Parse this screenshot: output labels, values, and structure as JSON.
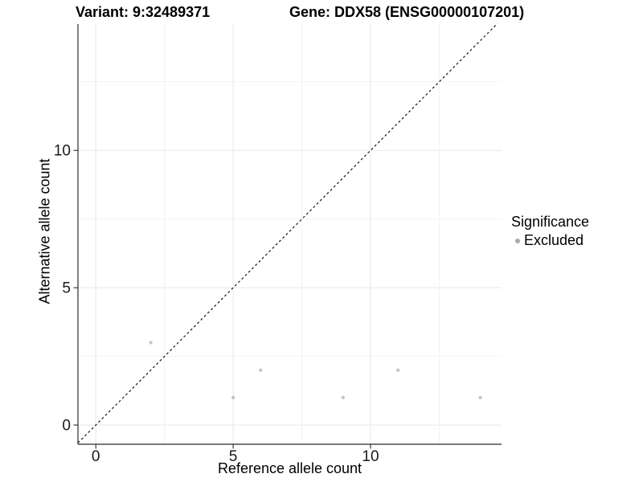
{
  "chart_data": {
    "type": "scatter",
    "titles": {
      "variant": "Variant: 9:32489371",
      "gene": "Gene: DDX58 (ENSG00000107201)"
    },
    "xlabel": "Reference allele count",
    "ylabel": "Alternative allele count",
    "xlim": [
      -0.65,
      14.77
    ],
    "ylim": [
      -0.7,
      14.6
    ],
    "xticks": [
      0,
      5,
      10
    ],
    "yticks": [
      0,
      5,
      10
    ],
    "xminor": [
      2.5,
      7.5,
      12.5
    ],
    "yminor": [
      2.5,
      7.5,
      12.5
    ],
    "grid": "major+minor",
    "identity_line": {
      "slope": 1,
      "intercept": 0,
      "style": "dashed",
      "color": "#1a1a1a"
    },
    "series": [
      {
        "name": "Excluded",
        "color": "#c3c3c3",
        "points": [
          [
            2,
            3
          ],
          [
            5,
            1
          ],
          [
            6,
            2
          ],
          [
            9,
            1
          ],
          [
            11,
            2
          ],
          [
            14,
            1
          ]
        ]
      }
    ],
    "legend": {
      "title": "Significance",
      "position": "right",
      "items": [
        {
          "label": "Excluded",
          "color": "#a8a8a8"
        }
      ]
    },
    "colors": {
      "grid_major": "#e7e7e7",
      "grid_minor": "#f2f2f2",
      "axis": "#2b2b2b",
      "tick_label": "#1a1a1a",
      "panel_bg": "#ffffff"
    }
  }
}
